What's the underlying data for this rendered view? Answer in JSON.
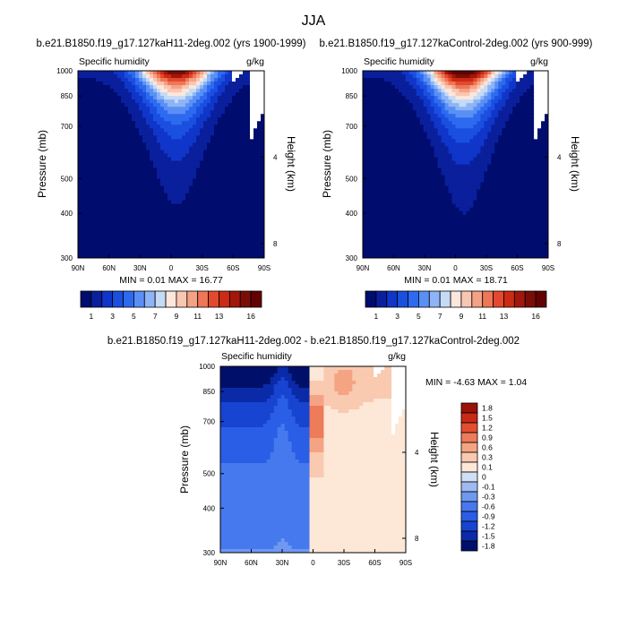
{
  "figure_title": "JJA",
  "chart_data": [
    {
      "type": "contour",
      "title": "b.e21.B1850.f19_g17.127kaH11-2deg.002 (yrs 1900-1999)",
      "left_label": "Specific humidity",
      "right_label": "g/kg",
      "ylabel": "Pressure (mb)",
      "y2label": "Height (km)",
      "xticks": [
        "90N",
        "60N",
        "30N",
        "0",
        "30S",
        "60S",
        "90S"
      ],
      "yticks": [
        "300",
        "400",
        "500",
        "700",
        "850",
        "1000"
      ],
      "y2ticks": [
        "8",
        "4"
      ],
      "ylim": [
        1000,
        300
      ],
      "xlim": [
        90,
        -90
      ],
      "stats": "MIN =  0.01  MAX =  16.77",
      "peak_lat": -5,
      "levels": [
        1,
        2,
        3,
        4,
        5,
        6,
        7,
        8,
        9,
        10,
        11,
        12,
        13,
        14,
        15,
        16
      ],
      "colorbar_labels": [
        "1",
        "3",
        "5",
        "7",
        "9",
        "11",
        "13",
        "16"
      ]
    },
    {
      "type": "contour",
      "title": "b.e21.B1850.f19_g17.127kaControl-2deg.002 (yrs 900-999)",
      "left_label": "Specific humidity",
      "right_label": "g/kg",
      "ylabel": "Pressure (mb)",
      "y2label": "Height (km)",
      "xticks": [
        "90N",
        "60N",
        "30N",
        "0",
        "30S",
        "60S",
        "90S"
      ],
      "yticks": [
        "300",
        "400",
        "500",
        "700",
        "850",
        "1000"
      ],
      "y2ticks": [
        "8",
        "4"
      ],
      "ylim": [
        1000,
        300
      ],
      "xlim": [
        90,
        -90
      ],
      "stats": "MIN =  0.01  MAX =  18.71",
      "peak_lat": -8,
      "levels": [
        1,
        2,
        3,
        4,
        5,
        6,
        7,
        8,
        9,
        10,
        11,
        12,
        13,
        14,
        15,
        16
      ],
      "colorbar_labels": [
        "1",
        "3",
        "5",
        "7",
        "9",
        "11",
        "13",
        "16"
      ]
    },
    {
      "type": "contour",
      "title": "b.e21.B1850.f19_g17.127kaH11-2deg.002 - b.e21.B1850.f19_g17.127kaControl-2deg.002",
      "left_label": "Specific humidity",
      "right_label": "g/kg",
      "ylabel": "Pressure (mb)",
      "y2label": "Height (km)",
      "xticks": [
        "90N",
        "60N",
        "30N",
        "0",
        "30S",
        "60S",
        "90S"
      ],
      "yticks": [
        "300",
        "400",
        "500",
        "700",
        "850",
        "1000"
      ],
      "y2ticks": [
        "8",
        "4"
      ],
      "ylim": [
        1000,
        300
      ],
      "xlim": [
        90,
        -90
      ],
      "stats": "MIN =  -4.63  MAX =   1.04",
      "levels": [
        -1.8,
        -1.5,
        -1.2,
        -0.9,
        -0.6,
        -0.3,
        -0.1,
        0.1,
        0.3,
        0.6,
        0.9,
        1.2,
        1.5,
        1.8
      ],
      "colorbar_labels": [
        "1.8",
        "1.5",
        "1.2",
        "0.9",
        "0.6",
        "0.3",
        "0.1",
        "0",
        "-0.1",
        "-0.3",
        "-0.6",
        "-0.9",
        "-1.2",
        "-1.5",
        "-1.8"
      ]
    }
  ],
  "colors": {
    "full_palette": [
      "#000c6e",
      "#0a1f9c",
      "#0f36c8",
      "#1a4fe0",
      "#2e6af0",
      "#5a8ff5",
      "#8db4f7",
      "#c4dbf6",
      "#fde6dc",
      "#f9c6b2",
      "#f4a286",
      "#ee7757",
      "#e3492e",
      "#cb2a14",
      "#a3160c",
      "#7a0d06",
      "#620203"
    ],
    "diff_palette": [
      "#00106a",
      "#0a2aa8",
      "#1744d0",
      "#2a5ee6",
      "#4679ee",
      "#6f98f0",
      "#9fbaf2",
      "#cfdff5",
      "#fde7d6",
      "#f9c9b0",
      "#f4a482",
      "#ee7b5a",
      "#e34e31",
      "#c92a17",
      "#9a1208"
    ],
    "land": "#ffffff"
  }
}
